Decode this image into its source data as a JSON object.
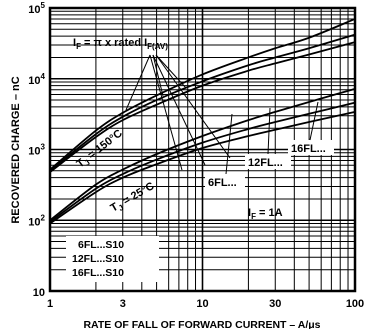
{
  "chart_data": {
    "type": "line",
    "title": "",
    "xlabel": "RATE OF FALL OF FORWARD CURRENT – A/μs",
    "ylabel": "RECOVERED CHARGE – nC",
    "x_scale": "log",
    "y_scale": "log",
    "xlim": [
      1,
      100
    ],
    "ylim": [
      10,
      100000
    ],
    "grid": true,
    "x_tick_labels": [
      "1",
      "3",
      "10",
      "30",
      "100"
    ],
    "y_tick_labels": [
      "10",
      "10²",
      "10³",
      "10⁴",
      "10⁵"
    ],
    "x": [
      1,
      2,
      3,
      5,
      10,
      20,
      30,
      50,
      100
    ],
    "series": [
      {
        "name": "6FL... (Tj = 150°C)",
        "values": [
          480,
          1500,
          2600,
          4300,
          8000,
          13000,
          16500,
          22000,
          33000
        ]
      },
      {
        "name": "12FL... (Tj = 150°C)",
        "values": [
          500,
          1650,
          2900,
          5000,
          9200,
          15500,
          20000,
          27000,
          42000
        ]
      },
      {
        "name": "16FL... (Tj = 150°C)",
        "values": [
          520,
          1850,
          3300,
          5800,
          11500,
          20000,
          27000,
          38000,
          70000
        ]
      },
      {
        "name": "6FL... (Tj = 25°C)",
        "values": [
          90,
          250,
          400,
          620,
          1050,
          1550,
          1900,
          2450,
          3400
        ]
      },
      {
        "name": "12FL... (Tj = 25°C)",
        "values": [
          95,
          280,
          450,
          720,
          1250,
          1950,
          2450,
          3200,
          4600
        ]
      },
      {
        "name": "16FL... (Tj = 25°C)",
        "values": [
          100,
          320,
          520,
          860,
          1550,
          2600,
          3400,
          4700,
          7200
        ]
      }
    ],
    "annotations": {
      "if_rated": "I",
      "if_rated_sub": "F",
      "if_rated_mid": " = π x rated I",
      "if_rated_sub2": "F(AV)",
      "tj150_a": "T",
      "tj150_sub": "J",
      "tj150_b": " = 150°C",
      "tj25_a": "T",
      "tj25_sub": "J",
      "tj25_b": " = 25°C",
      "if1a_a": "I",
      "if1a_sub": "F",
      "if1a_b": " = 1A",
      "label_16fl": "16FL...",
      "label_12fl": "12FL...",
      "label_6fl": "6FL...",
      "legend_lines": [
        "6FL...S10",
        "12FL...S10",
        "16FL...S10"
      ]
    }
  }
}
